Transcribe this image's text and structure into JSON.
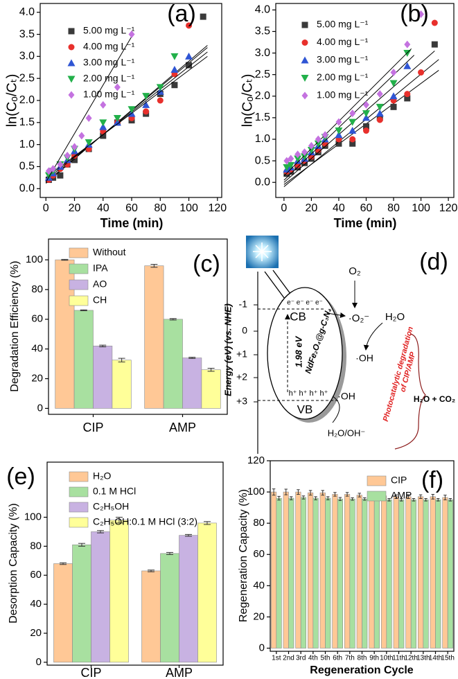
{
  "chart_data": [
    {
      "type": "scatter",
      "label": "(a)",
      "xlabel": "Time (min)",
      "ylabel": "ln(Cₒ/Cₜ)",
      "x": [
        2,
        5,
        10,
        15,
        20,
        25,
        30,
        40,
        50,
        60,
        70,
        80,
        90,
        100,
        110
      ],
      "series": [
        {
          "name": "5.00 mg L⁻¹",
          "color": "#3a3a3a",
          "marker": "square",
          "values": [
            0.2,
            0.25,
            0.3,
            0.55,
            0.65,
            null,
            0.9,
            1.2,
            1.5,
            1.55,
            1.7,
            2.15,
            2.35,
            2.8,
            3.9
          ],
          "fit_x": [
            0,
            113
          ],
          "fit_y": [
            0.15,
            3.2
          ]
        },
        {
          "name": "4.00 mg L⁻¹",
          "color": "#e8302c",
          "marker": "circle",
          "values": [
            0.2,
            0.3,
            0.45,
            0.55,
            0.75,
            null,
            0.9,
            1.3,
            1.5,
            1.6,
            1.75,
            2.0,
            2.6,
            3.7,
            null
          ],
          "fit_x": [
            0,
            113
          ],
          "fit_y": [
            0.12,
            3.25
          ]
        },
        {
          "name": "3.00 mg L⁻¹",
          "color": "#2f55d4",
          "marker": "triangle-up",
          "values": [
            0.25,
            0.35,
            0.5,
            0.65,
            0.85,
            null,
            1.0,
            1.4,
            1.5,
            1.7,
            1.9,
            2.2,
            2.7,
            3.0,
            null
          ],
          "fit_x": [
            0,
            113
          ],
          "fit_y": [
            0.2,
            3.1
          ]
        },
        {
          "name": "2.00 mg L⁻¹",
          "color": "#22b04a",
          "marker": "triangle-down",
          "values": [
            0.3,
            0.4,
            0.55,
            0.7,
            0.9,
            null,
            1.05,
            1.5,
            1.6,
            1.8,
            2.1,
            2.3,
            3.0,
            null,
            null
          ],
          "fit_x": [
            0,
            113
          ],
          "fit_y": [
            0.25,
            3.0
          ]
        },
        {
          "name": "1.00 mg L⁻¹",
          "color": "#c472e0",
          "marker": "diamond",
          "values": [
            0.4,
            0.45,
            0.55,
            0.75,
            0.95,
            1.2,
            1.6,
            1.9,
            2.3,
            3.5,
            null,
            null,
            null,
            null,
            null
          ],
          "fit_x": [
            0,
            60
          ],
          "fit_y": [
            0.15,
            3.45
          ]
        }
      ],
      "xlim": [
        -4,
        123
      ],
      "ylim": [
        -0.2,
        4.2
      ],
      "xticks": [
        0,
        20,
        40,
        60,
        80,
        100,
        120
      ],
      "yticks": [
        {
          "value": 0,
          "label": "0.0"
        },
        0.5,
        {
          "value": 1,
          "label": "1.0"
        },
        1.5,
        {
          "value": 2,
          "label": "2.0"
        },
        2.5,
        {
          "value": 3,
          "label": "3.0"
        },
        3.5,
        {
          "value": 4,
          "label": "4.0"
        }
      ],
      "legend": "upper left"
    },
    {
      "type": "scatter",
      "label": "(b)",
      "xlabel": "Time (min)",
      "ylabel": "ln(Cₒ/Cₜ)",
      "x": [
        2,
        5,
        10,
        15,
        20,
        25,
        30,
        40,
        50,
        60,
        70,
        80,
        90,
        100,
        110
      ],
      "series": [
        {
          "name": "5.00 mg L⁻¹",
          "color": "#3a3a3a",
          "marker": "square",
          "values": [
            0.2,
            0.25,
            0.35,
            0.45,
            0.55,
            0.7,
            0.85,
            0.9,
            0.9,
            1.3,
            1.5,
            1.75,
            1.95,
            null,
            3.2
          ],
          "fit_x": [
            0,
            113
          ],
          "fit_y": [
            -0.05,
            2.6
          ]
        },
        {
          "name": "4.00 mg L⁻¹",
          "color": "#e8302c",
          "marker": "circle",
          "values": [
            0.25,
            0.3,
            0.4,
            0.5,
            0.6,
            0.75,
            0.9,
            1.0,
            1.0,
            1.2,
            1.45,
            1.9,
            2.05,
            2.55,
            3.7
          ],
          "fit_x": [
            0,
            113
          ],
          "fit_y": [
            -0.1,
            2.85
          ]
        },
        {
          "name": "3.00 mg L⁻¹",
          "color": "#2f55d4",
          "marker": "triangle-up",
          "values": [
            0.3,
            0.35,
            0.5,
            0.55,
            0.7,
            0.85,
            1.0,
            1.1,
            1.2,
            1.5,
            1.6,
            2.0,
            2.7,
            null,
            null
          ],
          "fit_x": [
            0,
            110
          ],
          "fit_y": [
            0.0,
            3.05
          ]
        },
        {
          "name": "2.00 mg L⁻¹",
          "color": "#22b04a",
          "marker": "triangle-down",
          "values": [
            0.35,
            0.4,
            0.55,
            0.6,
            0.75,
            0.9,
            1.05,
            1.2,
            1.4,
            1.6,
            1.75,
            2.3,
            3.0,
            null,
            null
          ],
          "fit_x": [
            0,
            95
          ],
          "fit_y": [
            0.05,
            2.95
          ]
        },
        {
          "name": "1.00 mg L⁻¹",
          "color": "#c472e0",
          "marker": "diamond",
          "values": [
            0.5,
            0.55,
            0.65,
            0.7,
            0.85,
            1.0,
            1.1,
            1.4,
            1.6,
            1.8,
            2.05,
            2.55,
            3.2,
            3.9,
            null
          ],
          "fit_x": [
            0,
            93
          ],
          "fit_y": [
            0.15,
            3.1
          ]
        }
      ],
      "xlim": [
        -6,
        124
      ],
      "ylim": [
        -0.35,
        4.15
      ],
      "xticks": [
        0,
        20,
        40,
        60,
        80,
        100,
        120
      ],
      "yticks": [
        {
          "value": 0,
          "label": "0.0"
        },
        0.5,
        {
          "value": 1,
          "label": "1.0"
        },
        1.5,
        {
          "value": 2,
          "label": "2.0"
        },
        2.5,
        {
          "value": 3,
          "label": "3.0"
        },
        3.5,
        {
          "value": 4,
          "label": "4.0"
        }
      ],
      "legend": "upper left"
    },
    {
      "type": "bar",
      "label": "(c)",
      "ylabel": "Degradation Efficiency (%)",
      "categories": [
        "CIP",
        "AMP"
      ],
      "series": [
        {
          "name": "Without",
          "color": "#ffc896",
          "values": [
            100,
            96
          ],
          "errors": [
            0.3,
            1.0
          ]
        },
        {
          "name": "IPA",
          "color": "#a8e0a0",
          "values": [
            66,
            60
          ],
          "errors": [
            0.3,
            0.5
          ]
        },
        {
          "name": "AO",
          "color": "#c8b2e2",
          "values": [
            42,
            34
          ],
          "errors": [
            0.6,
            0.4
          ]
        },
        {
          "name": "CH",
          "color": "#ffff99",
          "values": [
            32.5,
            26
          ],
          "errors": [
            1.2,
            1.0
          ]
        }
      ],
      "ylim": [
        -4,
        114
      ],
      "yticks": [
        0,
        20,
        40,
        60,
        80,
        100
      ],
      "legend": "upper left"
    },
    {
      "type": "bar",
      "label": "(e)",
      "ylabel": "Desorption Capacity (%)",
      "categories": [
        "CIP",
        "AMP"
      ],
      "series": [
        {
          "name": "H₂O",
          "color": "#ffc896",
          "values": [
            68,
            63
          ],
          "errors": [
            0.6,
            0.6
          ]
        },
        {
          "name": "0.1 M HCl",
          "color": "#a8e0a0",
          "values": [
            81,
            75
          ],
          "errors": [
            1.0,
            0.7
          ]
        },
        {
          "name": "C₂H₅OH",
          "color": "#c8b2e2",
          "values": [
            90,
            87.5
          ],
          "errors": [
            0.8,
            0.6
          ]
        },
        {
          "name": "C₂H₅OH:0.1 M HCl (3:2)",
          "color": "#ffff99",
          "values": [
            98,
            96
          ],
          "errors": [
            2.0,
            1.0
          ]
        }
      ],
      "ylim": [
        -2,
        138
      ],
      "yticks": [
        0,
        20,
        40,
        60,
        80,
        100
      ],
      "legend": "upper left"
    },
    {
      "type": "bar",
      "label": "(f)",
      "ylabel": "Regeneration Capacity (%)",
      "xlabel": "Regeneration Cycle",
      "categories": [
        "1st",
        "2nd",
        "3rd",
        "4th",
        "5th",
        "6th",
        "7th",
        "8th",
        "9th",
        "10th",
        "11th",
        "12th",
        "13th",
        "14th",
        "15th"
      ],
      "series": [
        {
          "name": "CIP",
          "color": "#ffc896",
          "values": [
            100,
            100,
            100,
            99.5,
            99.5,
            98.5,
            98.5,
            98,
            98,
            97.5,
            97,
            97,
            97,
            97,
            96.5
          ],
          "errors": [
            2,
            1.8,
            1.5,
            1.5,
            1.5,
            1.2,
            1.2,
            1.2,
            1.5,
            1.2,
            1.2,
            1.2,
            1.2,
            1.5,
            1.5
          ]
        },
        {
          "name": "AMP",
          "color": "#a8e0a0",
          "values": [
            96,
            96,
            96.5,
            96,
            96,
            95.5,
            95.5,
            95.5,
            95.5,
            95,
            95,
            95,
            95,
            95,
            95
          ],
          "errors": [
            1.2,
            1.0,
            1.0,
            1.0,
            1.0,
            1.0,
            0.8,
            0.8,
            0.8,
            0.8,
            0.8,
            0.8,
            0.8,
            0.8,
            0.8
          ]
        }
      ],
      "ylim": [
        -2,
        120
      ],
      "yticks": [
        0,
        20,
        40,
        60,
        80,
        100,
        120
      ],
      "legend": "upper right"
    }
  ],
  "diagram": {
    "label": "(d)",
    "axis_label": "Energy (eV) (vs. NHE)",
    "levels": [
      "-1",
      "0",
      "+1",
      "+2",
      "+3"
    ],
    "cb": "CB",
    "vb": "VB",
    "electrons": "e⁻ e⁻ e⁻ e⁻",
    "holes": "h⁺ h⁺ h⁺ h⁺",
    "band_gap": "1.98 eV",
    "catalyst": "NdFe₂O₄@g-C₃N₄",
    "o2": "O₂",
    "superoxide": "·O₂⁻",
    "water": "H₂O",
    "hydroxyl_1": "·OH",
    "hydroxyl_2": "·OH",
    "water_hydroxide": "H₂O/OH⁻",
    "process": [
      "Photocatalytic degradation",
      "of CIP/AMP"
    ],
    "products": "H₂O + CO₂"
  }
}
